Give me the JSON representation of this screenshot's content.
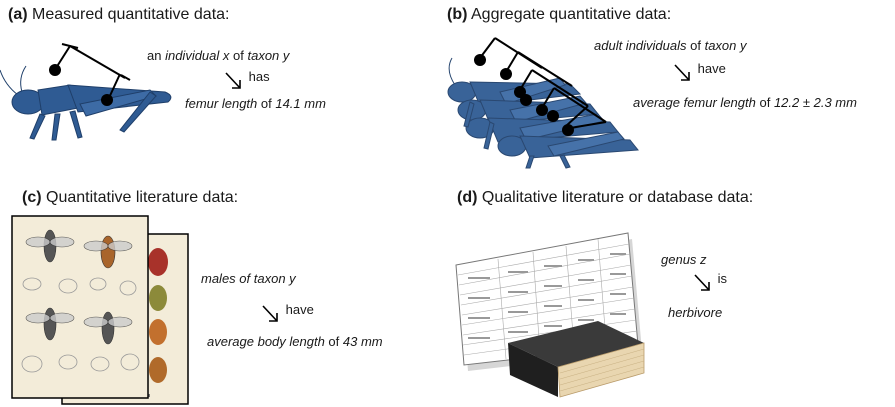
{
  "panels": {
    "a": {
      "letter": "(a)",
      "title": "Measured quantitative data:",
      "subject_prefix": "an ",
      "subject_em": "individual x",
      "subject_mid": " of ",
      "subject_em2": "taxon y",
      "verb": "has",
      "object_em": "femur length",
      "object_mid": " of ",
      "object_em2": "14.1 mm"
    },
    "b": {
      "letter": "(b)",
      "title": "Aggregate quantitative data:",
      "subject_em": "adult individuals",
      "subject_mid": " of ",
      "subject_em2": "taxon y",
      "verb": "have",
      "object_em": "average femur length",
      "object_mid": " of ",
      "object_em2": "12.2 ± 2.3 mm"
    },
    "c": {
      "letter": "(c)",
      "title": "Quantitative literature data:",
      "subject_em": "males of taxon y",
      "verb": "have",
      "object_em": "average body length",
      "object_mid": " of ",
      "object_em2": "43 mm"
    },
    "d": {
      "letter": "(d)",
      "title": "Qualitative literature or database data:",
      "subject_em": "genus z",
      "verb": "is",
      "object_em": "herbivore"
    }
  },
  "colors": {
    "grasshopper": "#2f5b93",
    "book_cover": "#2a2a2a",
    "book_pages": "#e9d6b0",
    "plate_bg": "#f3ecd9"
  }
}
